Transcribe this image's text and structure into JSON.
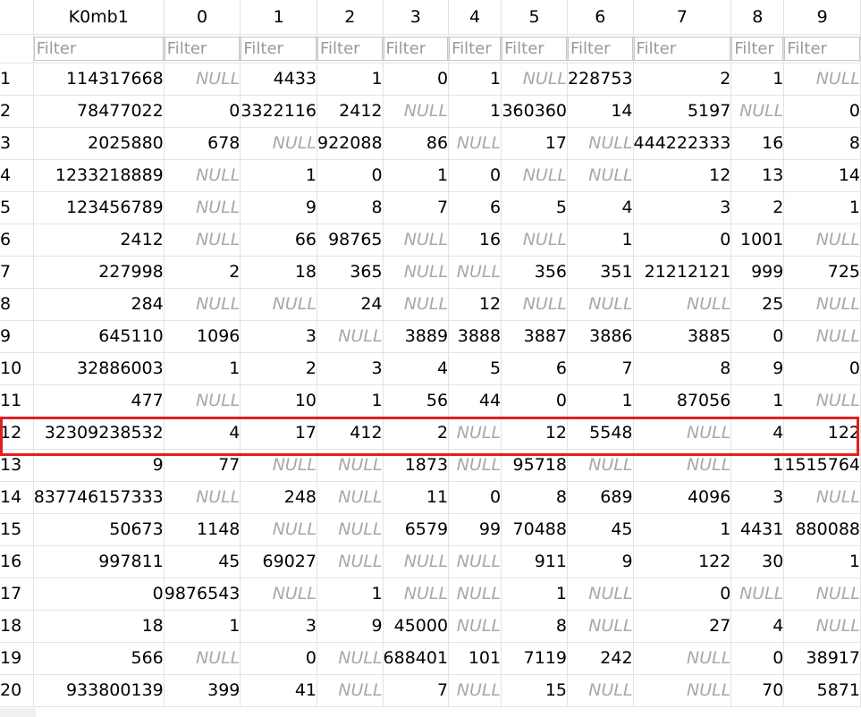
{
  "columns": [
    "K0mb1",
    "0",
    "1",
    "2",
    "3",
    "4",
    "5",
    "6",
    "7",
    "8",
    "9"
  ],
  "filter_placeholder": "Filter",
  "null_text": "NULL",
  "highlight_color": "#e02020",
  "highlighted_row": 12,
  "rows": [
    {
      "id": "1",
      "cells": [
        "114317668",
        null,
        "4433",
        "1",
        "0",
        "1",
        null,
        "228753",
        "2",
        "1",
        null
      ]
    },
    {
      "id": "2",
      "cells": [
        "78477022",
        "0",
        "3322116",
        "2412",
        null,
        "1",
        "360360",
        "14",
        "5197",
        null,
        "0"
      ]
    },
    {
      "id": "3",
      "cells": [
        "2025880",
        "678",
        null,
        "922088",
        "86",
        null,
        "17",
        null,
        "444222333",
        "16",
        "8"
      ]
    },
    {
      "id": "4",
      "cells": [
        "1233218889",
        null,
        "1",
        "0",
        "1",
        "0",
        null,
        null,
        "12",
        "13",
        "14"
      ]
    },
    {
      "id": "5",
      "cells": [
        "123456789",
        null,
        "9",
        "8",
        "7",
        "6",
        "5",
        "4",
        "3",
        "2",
        "1"
      ]
    },
    {
      "id": "6",
      "cells": [
        "2412",
        null,
        "66",
        "98765",
        null,
        "16",
        null,
        "1",
        "0",
        "1001",
        null
      ]
    },
    {
      "id": "7",
      "cells": [
        "227998",
        "2",
        "18",
        "365",
        null,
        null,
        "356",
        "351",
        "21212121",
        "999",
        "725"
      ]
    },
    {
      "id": "8",
      "cells": [
        "284",
        null,
        null,
        "24",
        null,
        "12",
        null,
        null,
        null,
        "25",
        null
      ]
    },
    {
      "id": "9",
      "cells": [
        "645110",
        "1096",
        "3",
        null,
        "3889",
        "3888",
        "3887",
        "3886",
        "3885",
        "0",
        null
      ]
    },
    {
      "id": "10",
      "cells": [
        "32886003",
        "1",
        "2",
        "3",
        "4",
        "5",
        "6",
        "7",
        "8",
        "9",
        "0"
      ]
    },
    {
      "id": "11",
      "cells": [
        "477",
        null,
        "10",
        "1",
        "56",
        "44",
        "0",
        "1",
        "87056",
        "1",
        null
      ]
    },
    {
      "id": "12",
      "cells": [
        "32309238532",
        "4",
        "17",
        "412",
        "2",
        null,
        "12",
        "5548",
        null,
        "4",
        "122"
      ]
    },
    {
      "id": "13",
      "cells": [
        "9",
        "77",
        null,
        null,
        "1873",
        null,
        "95718",
        null,
        null,
        "1",
        "1515764"
      ]
    },
    {
      "id": "14",
      "cells": [
        "837746157333",
        null,
        "248",
        null,
        "11",
        "0",
        "8",
        "689",
        "4096",
        "3",
        null
      ]
    },
    {
      "id": "15",
      "cells": [
        "50673",
        "1148",
        null,
        null,
        "6579",
        "99",
        "70488",
        "45",
        "1",
        "4431",
        "880088"
      ]
    },
    {
      "id": "16",
      "cells": [
        "997811",
        "45",
        "69027",
        null,
        null,
        null,
        "911",
        "9",
        "122",
        "30",
        "1"
      ]
    },
    {
      "id": "17",
      "cells": [
        "0",
        "9876543",
        null,
        "1",
        null,
        null,
        "1",
        null,
        "0",
        null,
        null
      ]
    },
    {
      "id": "18",
      "cells": [
        "18",
        "1",
        "3",
        "9",
        "45000",
        null,
        "8",
        null,
        "27",
        "4",
        null
      ]
    },
    {
      "id": "19",
      "cells": [
        "566",
        null,
        "0",
        null,
        "688401",
        "101",
        "7119",
        "242",
        null,
        "0",
        "38917"
      ]
    },
    {
      "id": "20",
      "cells": [
        "933800139",
        "399",
        "41",
        null,
        "7",
        null,
        "15",
        null,
        null,
        "70",
        "5871"
      ]
    }
  ]
}
